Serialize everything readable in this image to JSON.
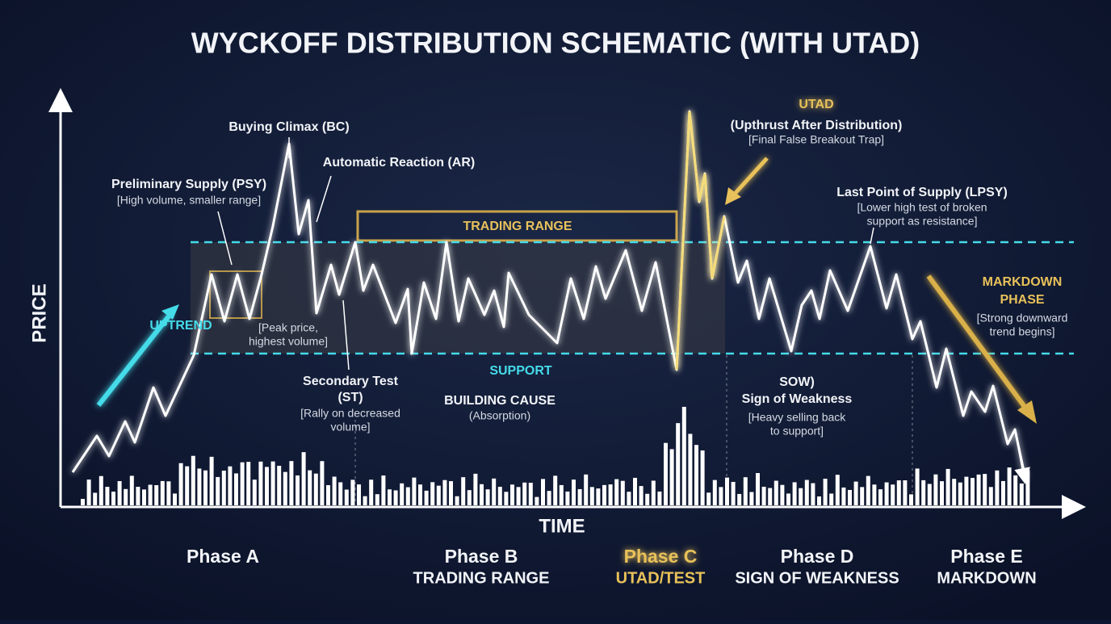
{
  "title": "WYCKOFF DISTRIBUTION SCHEMATIC (WITH UTAD)",
  "axes": {
    "y": "PRICE",
    "x": "TIME"
  },
  "annotations": {
    "uptrend": "UPTREND",
    "psy": {
      "title": "Preliminary Supply (PSY)",
      "note": "[High volume, smaller range]"
    },
    "bc": "Buying Climax (BC)",
    "ar": "Automatic Reaction (AR)",
    "peak": [
      "[Peak price,",
      "highest volume]"
    ],
    "st": {
      "title": [
        "Secondary Test",
        "(ST)"
      ],
      "note": [
        "[Rally on decreased",
        "volume]"
      ]
    },
    "trading_range": "TRADING RANGE",
    "support": "SUPPORT",
    "cause": {
      "title": "BUILDING CAUSE",
      "note": "(Absorption)"
    },
    "utad": {
      "title": "UTAD",
      "subtitle": "(Upthrust After Distribution)",
      "note": "[Final False Breakout Trap]"
    },
    "lpsy": {
      "title": "Last Point of Supply (LPSY)",
      "note": [
        "[Lower high test of broken",
        "support as resistance]"
      ]
    },
    "sow": {
      "title": [
        "SOW)",
        "Sign of Weakness"
      ],
      "note": [
        "[Heavy selling back",
        "to support]"
      ]
    },
    "markdown": {
      "title": [
        "MARKDOWN",
        "PHASE"
      ],
      "note": [
        "[Strong downward",
        "trend begins]"
      ]
    }
  },
  "phases": [
    {
      "name": "Phase A"
    },
    {
      "name": "Phase B",
      "subtitle": "TRADING RANGE"
    },
    {
      "name": "Phase C",
      "subtitle": "UTAD/TEST"
    },
    {
      "name": "Phase D",
      "subtitle": "SIGN OF WEAKNESS"
    },
    {
      "name": "Phase E",
      "subtitle": "MARKDOWN"
    }
  ]
}
